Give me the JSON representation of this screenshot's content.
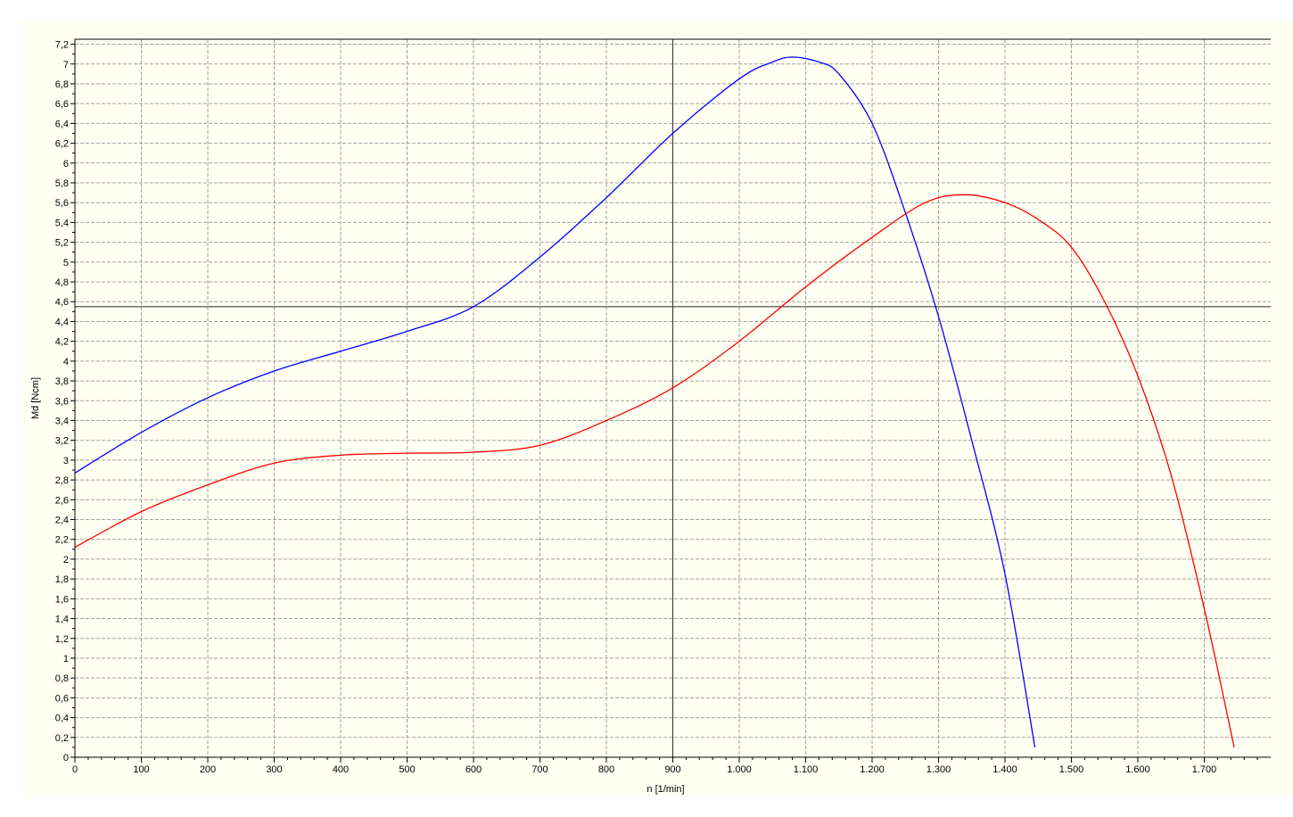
{
  "chart_data": {
    "type": "line",
    "xlabel": "n [1/min]",
    "ylabel": "Md [Ncm]",
    "xlim": [
      0,
      1800
    ],
    "ylim": [
      0,
      7.25
    ],
    "x_ticks": [
      0,
      100,
      200,
      300,
      400,
      500,
      600,
      700,
      800,
      900,
      1000,
      1100,
      1200,
      1300,
      1400,
      1500,
      1600,
      1700
    ],
    "x_tick_labels": [
      "0",
      "100",
      "200",
      "300",
      "400",
      "500",
      "600",
      "700",
      "800",
      "900",
      "1.000",
      "1.100",
      "1.200",
      "1.300",
      "1.400",
      "1.500",
      "1.600",
      "1.700"
    ],
    "y_ticks": [
      0,
      0.2,
      0.4,
      0.6,
      0.8,
      1,
      1.2,
      1.4,
      1.6,
      1.8,
      2,
      2.2,
      2.4,
      2.6,
      2.8,
      3,
      3.2,
      3.4,
      3.6,
      3.8,
      4,
      4.2,
      4.4,
      4.6,
      4.8,
      5,
      5.2,
      5.4,
      5.6,
      5.8,
      6,
      6.2,
      6.4,
      6.6,
      6.8,
      7,
      7.2
    ],
    "y_tick_labels": [
      "0",
      "0,2",
      "0,4",
      "0,6",
      "0,8",
      "1",
      "1,2",
      "1,4",
      "1,6",
      "1,8",
      "2",
      "2,2",
      "2,4",
      "2,6",
      "2,8",
      "3",
      "3,2",
      "3,4",
      "3,6",
      "3,8",
      "4",
      "4,2",
      "4,4",
      "4,6",
      "4,8",
      "5",
      "5,2",
      "5,4",
      "5,6",
      "5,8",
      "6",
      "6,2",
      "6,4",
      "6,6",
      "6,8",
      "7",
      "7,2"
    ],
    "grid": true,
    "crosshair": {
      "x": 900,
      "y": 4.55
    },
    "series": [
      {
        "color": "#0000ff",
        "points": [
          [
            0,
            2.87
          ],
          [
            100,
            3.28
          ],
          [
            200,
            3.63
          ],
          [
            300,
            3.9
          ],
          [
            400,
            4.1
          ],
          [
            500,
            4.3
          ],
          [
            600,
            4.55
          ],
          [
            700,
            5.05
          ],
          [
            800,
            5.65
          ],
          [
            900,
            6.3
          ],
          [
            1000,
            6.85
          ],
          [
            1050,
            7.02
          ],
          [
            1080,
            7.07
          ],
          [
            1120,
            7.02
          ],
          [
            1150,
            6.9
          ],
          [
            1200,
            6.4
          ],
          [
            1250,
            5.5
          ],
          [
            1300,
            4.45
          ],
          [
            1350,
            3.2
          ],
          [
            1400,
            1.85
          ],
          [
            1445,
            0.1
          ]
        ]
      },
      {
        "color": "#ff0000",
        "points": [
          [
            0,
            2.12
          ],
          [
            100,
            2.48
          ],
          [
            200,
            2.75
          ],
          [
            300,
            2.97
          ],
          [
            400,
            3.05
          ],
          [
            500,
            3.07
          ],
          [
            600,
            3.08
          ],
          [
            700,
            3.15
          ],
          [
            800,
            3.4
          ],
          [
            900,
            3.73
          ],
          [
            1000,
            4.2
          ],
          [
            1100,
            4.75
          ],
          [
            1200,
            5.25
          ],
          [
            1280,
            5.6
          ],
          [
            1340,
            5.68
          ],
          [
            1400,
            5.6
          ],
          [
            1450,
            5.43
          ],
          [
            1500,
            5.15
          ],
          [
            1550,
            4.6
          ],
          [
            1600,
            3.85
          ],
          [
            1650,
            2.85
          ],
          [
            1700,
            1.5
          ],
          [
            1745,
            0.1
          ]
        ]
      }
    ],
    "colors": {
      "plot_background": "#fffff2",
      "outer_background": "#ffffff",
      "grid": "#a0a0a0",
      "axis": "#000000",
      "crosshair": "#404040"
    }
  }
}
